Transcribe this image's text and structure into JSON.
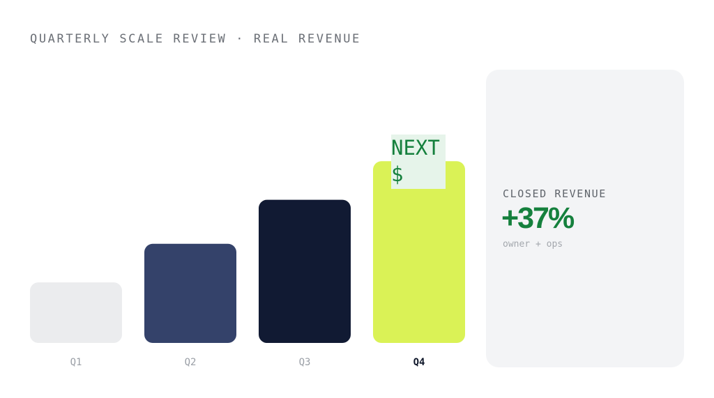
{
  "header": {
    "kicker": "QUARTERLY SCALE REVIEW · REAL REVENUE"
  },
  "chart_data": {
    "type": "bar",
    "categories": [
      "Q1",
      "Q2",
      "Q3",
      "Q4"
    ],
    "values": [
      22,
      36,
      52,
      66
    ],
    "highlight_index": 3,
    "colors": [
      "#ebecee",
      "#34426a",
      "#111a33",
      "#daf256"
    ],
    "active_label_color": "#0f172a",
    "inactive_label_color": "#9a9fa6",
    "ylim": [
      0,
      100
    ],
    "grid": false,
    "annotation": {
      "lines": [
        "NEXT",
        "$"
      ],
      "text_color": "#15803d",
      "background": "#e6f4ea"
    }
  },
  "summary": {
    "label": "CLOSED REVENUE",
    "value": "+37%",
    "note": "owner + ops",
    "value_color": "#15803d"
  }
}
